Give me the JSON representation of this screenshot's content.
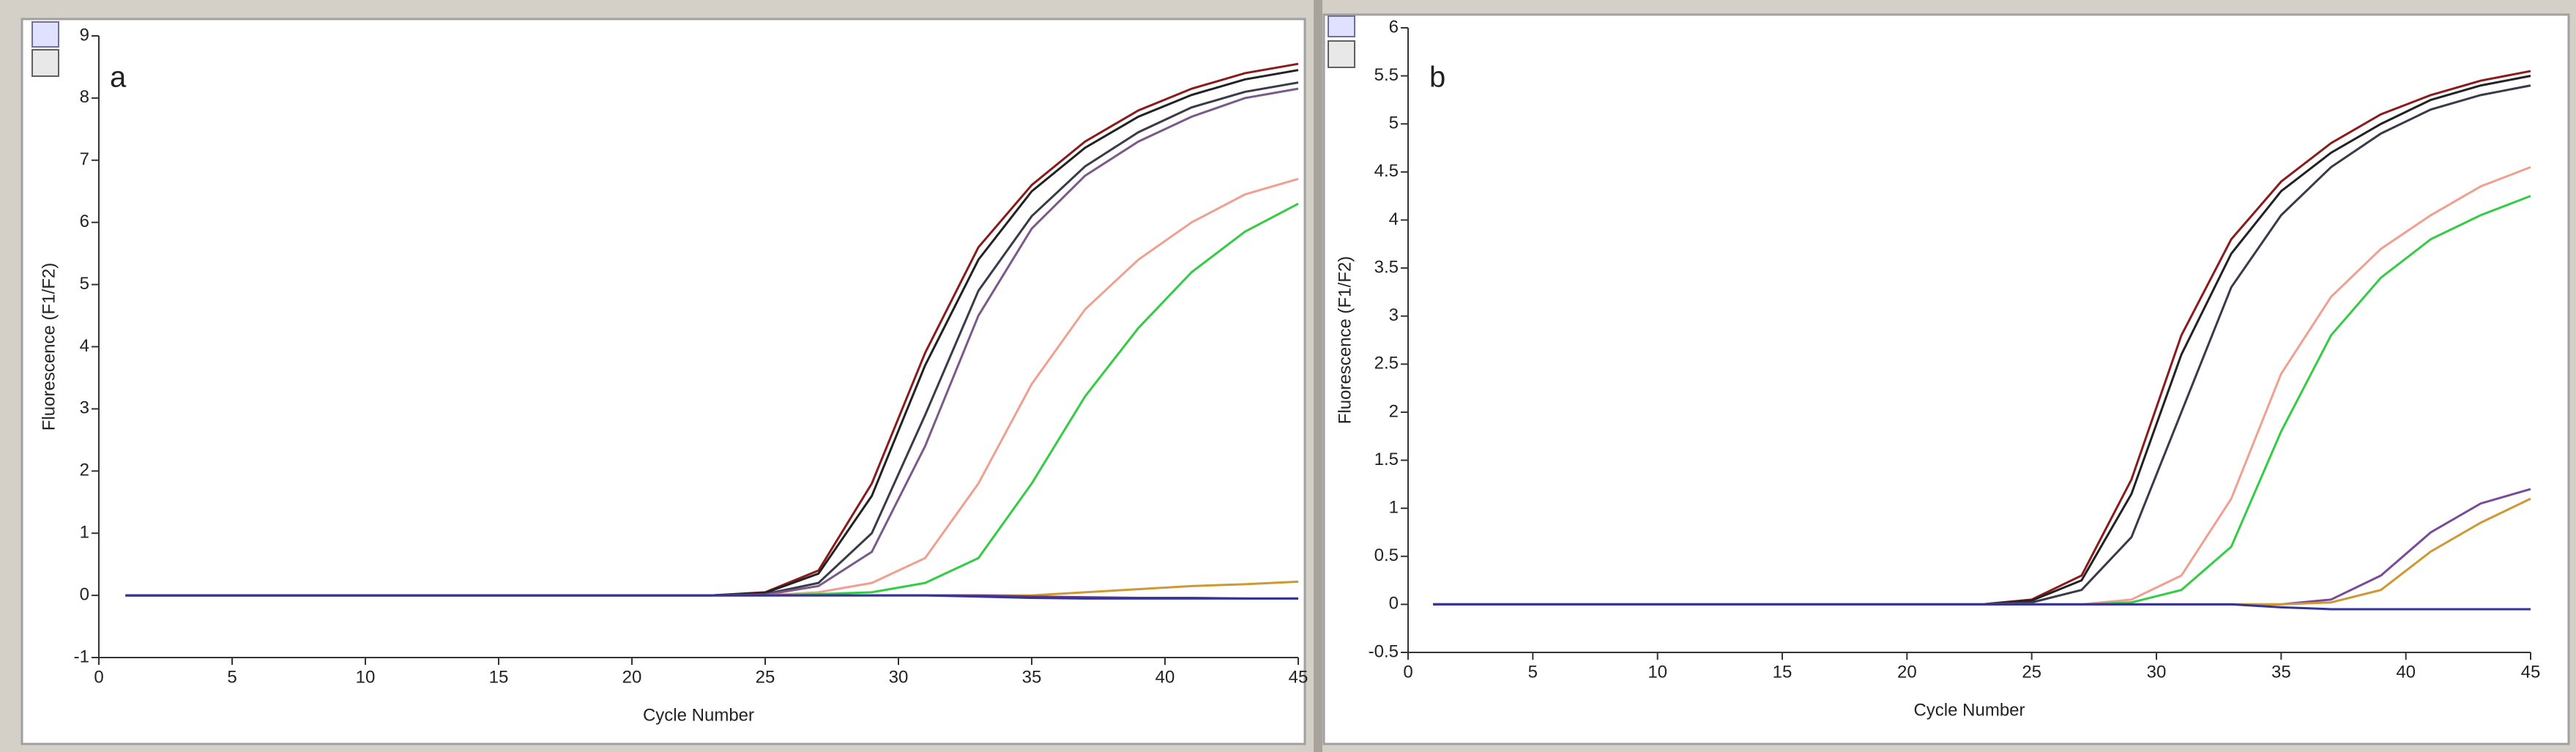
{
  "chart_data": [
    {
      "type": "line",
      "label": "a",
      "x_label": "Cycle Number",
      "y_label": "Fluorescence (F1/F2)",
      "xlim": [
        0,
        45
      ],
      "ylim": [
        -1,
        9
      ],
      "xticks": [
        0,
        5,
        10,
        15,
        20,
        25,
        30,
        35,
        40,
        45
      ],
      "yticks": [
        -1,
        0,
        1,
        2,
        3,
        4,
        5,
        6,
        7,
        8,
        9
      ],
      "x": [
        1,
        3,
        5,
        7,
        9,
        11,
        13,
        15,
        17,
        19,
        21,
        23,
        25,
        27,
        29,
        31,
        33,
        35,
        37,
        39,
        41,
        43,
        45
      ],
      "series": [
        {
          "color": "#8b1a1a",
          "values": [
            0,
            0,
            0,
            0,
            0,
            0,
            0,
            0,
            0,
            0,
            0,
            0,
            0.05,
            0.4,
            1.8,
            3.9,
            5.6,
            6.6,
            7.3,
            7.8,
            8.15,
            8.4,
            8.55
          ]
        },
        {
          "color": "#222222",
          "values": [
            0,
            0,
            0,
            0,
            0,
            0,
            0,
            0,
            0,
            0,
            0,
            0,
            0.04,
            0.35,
            1.6,
            3.7,
            5.4,
            6.5,
            7.2,
            7.7,
            8.05,
            8.3,
            8.45
          ]
        },
        {
          "color": "#3a3a4a",
          "values": [
            0,
            0,
            0,
            0,
            0,
            0,
            0,
            0,
            0,
            0,
            0,
            0,
            0.02,
            0.2,
            1.0,
            2.9,
            4.9,
            6.1,
            6.9,
            7.45,
            7.85,
            8.1,
            8.25
          ]
        },
        {
          "color": "#7a5a8a",
          "values": [
            0,
            0,
            0,
            0,
            0,
            0,
            0,
            0,
            0,
            0,
            0,
            0,
            0.01,
            0.15,
            0.7,
            2.4,
            4.5,
            5.9,
            6.75,
            7.3,
            7.7,
            8.0,
            8.15
          ]
        },
        {
          "color": "#f0a090",
          "values": [
            0,
            0,
            0,
            0,
            0,
            0,
            0,
            0,
            0,
            0,
            0,
            0,
            0,
            0.05,
            0.2,
            0.6,
            1.8,
            3.4,
            4.6,
            5.4,
            6.0,
            6.45,
            6.7
          ]
        },
        {
          "color": "#33cc44",
          "values": [
            0,
            0,
            0,
            0,
            0,
            0,
            0,
            0,
            0,
            0,
            0,
            0,
            0,
            0.02,
            0.05,
            0.2,
            0.6,
            1.8,
            3.2,
            4.3,
            5.2,
            5.85,
            6.3
          ]
        },
        {
          "color": "#cc9933",
          "values": [
            0,
            0,
            0,
            0,
            0,
            0,
            0,
            0,
            0,
            0,
            0,
            0,
            0,
            0,
            0,
            0,
            0,
            0,
            0.05,
            0.1,
            0.15,
            0.18,
            0.22
          ]
        },
        {
          "color": "#6a3a8a",
          "values": [
            0,
            0,
            0,
            0,
            0,
            0,
            0,
            0,
            0,
            0,
            0,
            0,
            0,
            0,
            0,
            0,
            0,
            -0.02,
            -0.03,
            -0.04,
            -0.04,
            -0.05,
            -0.05
          ]
        },
        {
          "color": "#333399",
          "values": [
            0,
            0,
            0,
            0,
            0,
            0,
            0,
            0,
            0,
            0,
            0,
            0,
            0,
            0,
            0,
            0,
            -0.02,
            -0.04,
            -0.05,
            -0.05,
            -0.05,
            -0.05,
            -0.05
          ]
        }
      ]
    },
    {
      "type": "line",
      "label": "b",
      "x_label": "Cycle Number",
      "y_label": "Fluorescence (F1/F2)",
      "xlim": [
        0,
        45
      ],
      "ylim": [
        -0.5,
        6
      ],
      "xticks": [
        0,
        5,
        10,
        15,
        20,
        25,
        30,
        35,
        40,
        45
      ],
      "yticks": [
        -0.5,
        0,
        0.5,
        1,
        1.5,
        2,
        2.5,
        3,
        3.5,
        4,
        4.5,
        5,
        5.5,
        6
      ],
      "x": [
        1,
        3,
        5,
        7,
        9,
        11,
        13,
        15,
        17,
        19,
        21,
        23,
        25,
        27,
        29,
        31,
        33,
        35,
        37,
        39,
        41,
        43,
        45
      ],
      "series": [
        {
          "color": "#8b1a1a",
          "values": [
            0,
            0,
            0,
            0,
            0,
            0,
            0,
            0,
            0,
            0,
            0,
            0,
            0.05,
            0.3,
            1.3,
            2.8,
            3.8,
            4.4,
            4.8,
            5.1,
            5.3,
            5.45,
            5.55
          ]
        },
        {
          "color": "#222222",
          "values": [
            0,
            0,
            0,
            0,
            0,
            0,
            0,
            0,
            0,
            0,
            0,
            0,
            0.04,
            0.25,
            1.15,
            2.6,
            3.65,
            4.3,
            4.7,
            5.0,
            5.25,
            5.4,
            5.5
          ]
        },
        {
          "color": "#3a3a4a",
          "values": [
            0,
            0,
            0,
            0,
            0,
            0,
            0,
            0,
            0,
            0,
            0,
            0,
            0.02,
            0.15,
            0.7,
            2.0,
            3.3,
            4.05,
            4.55,
            4.9,
            5.15,
            5.3,
            5.4
          ]
        },
        {
          "color": "#f0a090",
          "values": [
            0,
            0,
            0,
            0,
            0,
            0,
            0,
            0,
            0,
            0,
            0,
            0,
            0,
            0,
            0.05,
            0.3,
            1.1,
            2.4,
            3.2,
            3.7,
            4.05,
            4.35,
            4.55
          ]
        },
        {
          "color": "#33cc44",
          "values": [
            0,
            0,
            0,
            0,
            0,
            0,
            0,
            0,
            0,
            0,
            0,
            0,
            0,
            0,
            0.02,
            0.15,
            0.6,
            1.8,
            2.8,
            3.4,
            3.8,
            4.05,
            4.25
          ]
        },
        {
          "color": "#7a4a9a",
          "values": [
            0,
            0,
            0,
            0,
            0,
            0,
            0,
            0,
            0,
            0,
            0,
            0,
            0,
            0,
            0,
            0,
            0,
            0,
            0.05,
            0.3,
            0.75,
            1.05,
            1.2
          ]
        },
        {
          "color": "#cc9933",
          "values": [
            0,
            0,
            0,
            0,
            0,
            0,
            0,
            0,
            0,
            0,
            0,
            0,
            0,
            0,
            0,
            0,
            0,
            0,
            0.02,
            0.15,
            0.55,
            0.85,
            1.1
          ]
        },
        {
          "color": "#333399",
          "values": [
            0,
            0,
            0,
            0,
            0,
            0,
            0,
            0,
            0,
            0,
            0,
            0,
            0,
            0,
            0,
            0,
            0,
            -0.03,
            -0.05,
            -0.05,
            -0.05,
            -0.05,
            -0.05
          ]
        }
      ]
    }
  ]
}
